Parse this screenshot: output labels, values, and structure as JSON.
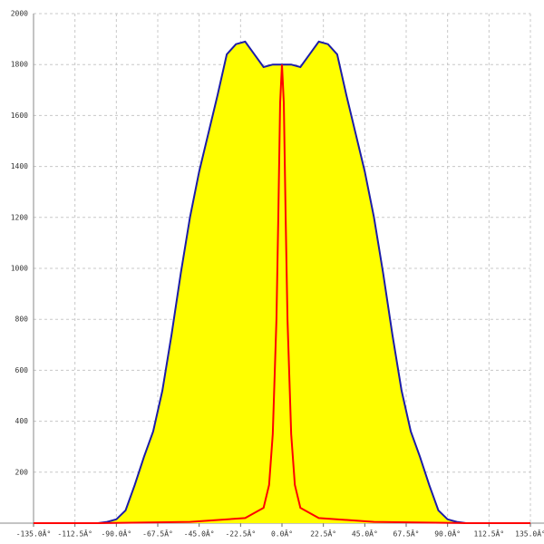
{
  "chart_data": {
    "type": "area",
    "xlim": [
      -135,
      135
    ],
    "xticks": [
      {
        "value": -135,
        "label": "-135.0Â°"
      },
      {
        "value": -112.5,
        "label": "-112.5Â°"
      },
      {
        "value": -90,
        "label": "-90.0Â°"
      },
      {
        "value": -67.5,
        "label": "-67.5Â°"
      },
      {
        "value": -45,
        "label": "-45.0Â°"
      },
      {
        "value": -22.5,
        "label": "-22.5Â°"
      },
      {
        "value": 0,
        "label": "0.0Â°"
      },
      {
        "value": 22.5,
        "label": "22.5Â°"
      },
      {
        "value": 45,
        "label": "45.0Â°"
      },
      {
        "value": 67.5,
        "label": "67.5Â°"
      },
      {
        "value": 90,
        "label": "90.0Â°"
      },
      {
        "value": 112.5,
        "label": "112.5Â°"
      },
      {
        "value": 135,
        "label": "135.0Â°"
      }
    ],
    "ylim": [
      0,
      2000
    ],
    "yticks": [
      200,
      400,
      600,
      800,
      1000,
      1200,
      1400,
      1600,
      1800,
      2000
    ],
    "grid": true,
    "series": [
      {
        "type": "area",
        "color": "#1c1ca8",
        "fill": "#ffff00",
        "x": [
          -100,
          -95,
          -90,
          -85,
          -80,
          -75,
          -70,
          -65,
          -60,
          -55,
          -50,
          -45,
          -40,
          -35,
          -30,
          -25,
          -20,
          -15,
          -10,
          -5,
          0,
          5,
          10,
          15,
          20,
          25,
          30,
          35,
          40,
          45,
          50,
          55,
          60,
          65,
          70,
          75,
          80,
          85,
          90,
          95,
          100
        ],
        "values": [
          0,
          5,
          15,
          50,
          150,
          260,
          360,
          520,
          740,
          980,
          1200,
          1380,
          1530,
          1680,
          1840,
          1880,
          1890,
          1840,
          1790,
          1800,
          1800,
          1800,
          1790,
          1840,
          1890,
          1880,
          1840,
          1680,
          1530,
          1380,
          1200,
          980,
          740,
          520,
          360,
          260,
          150,
          50,
          15,
          5,
          0
        ]
      },
      {
        "type": "line",
        "color": "#ff0000",
        "x": [
          -135,
          -100,
          -50,
          -20,
          -10,
          -7,
          -5,
          -3,
          -2,
          -1,
          0,
          1,
          2,
          3,
          5,
          7,
          10,
          20,
          50,
          100,
          135
        ],
        "values": [
          0,
          0,
          5,
          20,
          60,
          150,
          350,
          800,
          1200,
          1650,
          1800,
          1650,
          1200,
          800,
          350,
          150,
          60,
          20,
          5,
          0,
          0
        ]
      }
    ]
  }
}
